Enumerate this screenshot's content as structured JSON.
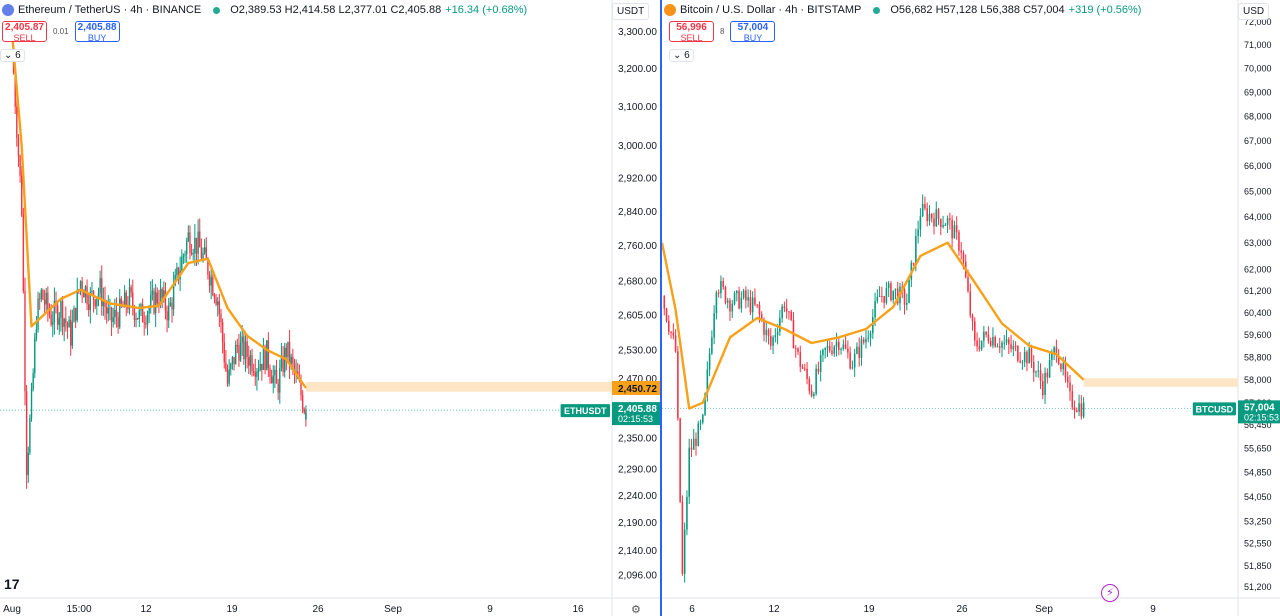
{
  "colors": {
    "up": "#089981",
    "down": "#f23645",
    "ma": "#f7a11a",
    "zone": "#fde2bf",
    "price_tag": "#089981",
    "ma_tag": "#f7a11a",
    "divider": "#2962ff"
  },
  "left": {
    "logo_icon": "ethereum-icon",
    "symbol_title": "Ethereum / TetherUS · 4h · BINANCE",
    "ohlc": "O2,389.53 H2,414.58 L2,377.01 C2,405.88",
    "change": "+16.34 (+0.68%)",
    "sell_price": "2,405.87",
    "sell_label": "SELL",
    "spread": "0.01",
    "buy_price": "2,405.88",
    "buy_label": "BUY",
    "indicator_count": "6",
    "unit": "USDT",
    "ticker_tag": "ETHUSDT",
    "last_price": "2,405.88",
    "countdown": "02:15:53",
    "ma_value": "2,450.72",
    "zone_low": 2443,
    "zone_high": 2463
  },
  "right": {
    "logo_icon": "bitcoin-icon",
    "symbol_title": "Bitcoin / U.S. Dollar · 4h · BITSTAMP",
    "ohlc": "O56,682 H57,128 L56,388 C57,004",
    "change": "+319 (+0.56%)",
    "sell_price": "56,996",
    "sell_label": "SELL",
    "spread": "8",
    "buy_price": "57,004",
    "buy_label": "BUY",
    "indicator_count": "6",
    "unit": "USD",
    "ticker_tag": "BTCUSD",
    "last_price": "57,004",
    "countdown": "02:15:53",
    "zone_low": 57750,
    "zone_high": 58050
  },
  "chart_data": [
    {
      "type": "candlestick",
      "title": "Ethereum / TetherUS · 4h · BINANCE",
      "ylabel": "USDT",
      "scale": "log",
      "ylim": [
        2060,
        3360
      ],
      "y_ticks": [
        3300,
        3200,
        3100,
        3000,
        2920,
        2840,
        2760,
        2680,
        2605,
        2530,
        2470,
        2410,
        2350,
        2290,
        2240,
        2190,
        2140,
        2096
      ],
      "x_tick_labels": [
        "Aug",
        "15:00",
        "12",
        "19",
        "26",
        "Sep",
        "9",
        "16"
      ],
      "series": [
        {
          "name": "ETHUSDT",
          "close_path": [
            [
              "Aug 5",
              3260
            ],
            [
              "Aug 5",
              3050
            ],
            [
              "Aug 6",
              2850
            ],
            [
              "Aug 6",
              2300
            ],
            [
              "Aug 7",
              2420
            ],
            [
              "Aug 7",
              2600
            ],
            [
              "Aug 8",
              2650
            ],
            [
              "Aug 9",
              2600
            ],
            [
              "Aug 10",
              2620
            ],
            [
              "Aug 11",
              2560
            ],
            [
              "Aug 12",
              2680
            ],
            [
              "Aug 13",
              2640
            ],
            [
              "Aug 14",
              2660
            ],
            [
              "Aug 15",
              2590
            ],
            [
              "Aug 16",
              2610
            ],
            [
              "Aug 17",
              2640
            ],
            [
              "Aug 18",
              2600
            ],
            [
              "Aug 19",
              2620
            ],
            [
              "Aug 20",
              2650
            ],
            [
              "Aug 21",
              2610
            ],
            [
              "Aug 22",
              2700
            ],
            [
              "Aug 23",
              2780
            ],
            [
              "Aug 24",
              2760
            ],
            [
              "Aug 25",
              2710
            ],
            [
              "Aug 26",
              2640
            ],
            [
              "Aug 27",
              2460
            ],
            [
              "Aug 28",
              2540
            ],
            [
              "Aug 29",
              2520
            ],
            [
              "Aug 30",
              2500
            ],
            [
              "Aug 31",
              2520
            ],
            [
              "Sep 1",
              2450
            ],
            [
              "Sep 2",
              2530
            ],
            [
              "Sep 3",
              2470
            ],
            [
              "Sep 4",
              2406
            ]
          ]
        },
        {
          "name": "Moving average",
          "values_path": [
            [
              "Aug 5",
              3300
            ],
            [
              "Aug 6",
              3000
            ],
            [
              "Aug 7",
              2580
            ],
            [
              "Aug 8",
              2600
            ],
            [
              "Aug 10",
              2640
            ],
            [
              "Aug 12",
              2660
            ],
            [
              "Aug 15",
              2630
            ],
            [
              "Aug 18",
              2620
            ],
            [
              "Aug 20",
              2625
            ],
            [
              "Aug 23",
              2720
            ],
            [
              "Aug 25",
              2730
            ],
            [
              "Aug 27",
              2620
            ],
            [
              "Aug 29",
              2560
            ],
            [
              "Aug 31",
              2530
            ],
            [
              "Sep 2",
              2510
            ],
            [
              "Sep 4",
              2450.72
            ]
          ]
        }
      ],
      "current_price": 2405.88
    },
    {
      "type": "candlestick",
      "title": "Bitcoin / U.S. Dollar · 4h · BITSTAMP",
      "ylabel": "USD",
      "scale": "log",
      "ylim": [
        50900,
        72500
      ],
      "y_ticks": [
        72000,
        71000,
        70000,
        69000,
        68000,
        67000,
        66000,
        65000,
        64000,
        63000,
        62000,
        61200,
        60400,
        59600,
        58800,
        58000,
        57200,
        56450,
        55650,
        54850,
        54050,
        53250,
        52550,
        51850,
        51200
      ],
      "x_tick_labels": [
        "6",
        "12",
        "19",
        "26",
        "Sep",
        "9"
      ],
      "series": [
        {
          "name": "BTCUSD",
          "close_path": [
            [
              "Aug 4",
              61000
            ],
            [
              "Aug 5",
              59000
            ],
            [
              "Aug 5",
              51500
            ],
            [
              "Aug 6",
              55500
            ],
            [
              "Aug 7",
              56500
            ],
            [
              "Aug 8",
              61500
            ],
            [
              "Aug 9",
              60800
            ],
            [
              "Aug 10",
              60900
            ],
            [
              "Aug 11",
              60500
            ],
            [
              "Aug 12",
              59200
            ],
            [
              "Aug 13",
              60800
            ],
            [
              "Aug 14",
              58800
            ],
            [
              "Aug 15",
              57600
            ],
            [
              "Aug 16",
              59000
            ],
            [
              "Aug 17",
              59400
            ],
            [
              "Aug 18",
              58600
            ],
            [
              "Aug 19",
              59500
            ],
            [
              "Aug 20",
              61000
            ],
            [
              "Aug 21",
              61200
            ],
            [
              "Aug 22",
              60800
            ],
            [
              "Aug 23",
              64200
            ],
            [
              "Aug 24",
              64000
            ],
            [
              "Aug 25",
              63800
            ],
            [
              "Aug 26",
              62800
            ],
            [
              "Aug 27",
              59200
            ],
            [
              "Aug 28",
              59600
            ],
            [
              "Aug 29",
              59300
            ],
            [
              "Aug 30",
              59000
            ],
            [
              "Aug 31",
              58800
            ],
            [
              "Sep 1",
              57800
            ],
            [
              "Sep 2",
              59200
            ],
            [
              "Sep 3",
              57300
            ],
            [
              "Sep 4",
              57004
            ]
          ]
        },
        {
          "name": "Moving average",
          "values_path": [
            [
              "Aug 4",
              63000
            ],
            [
              "Aug 5",
              60500
            ],
            [
              "Aug 6",
              57000
            ],
            [
              "Aug 7",
              57200
            ],
            [
              "Aug 9",
              59500
            ],
            [
              "Aug 11",
              60200
            ],
            [
              "Aug 13",
              59800
            ],
            [
              "Aug 15",
              59300
            ],
            [
              "Aug 17",
              59500
            ],
            [
              "Aug 19",
              59800
            ],
            [
              "Aug 21",
              60600
            ],
            [
              "Aug 23",
              62500
            ],
            [
              "Aug 25",
              63000
            ],
            [
              "Aug 27",
              61500
            ],
            [
              "Aug 29",
              60000
            ],
            [
              "Aug 31",
              59200
            ],
            [
              "Sep 2",
              58900
            ],
            [
              "Sep 4",
              58000
            ]
          ]
        }
      ],
      "current_price": 57004
    }
  ]
}
